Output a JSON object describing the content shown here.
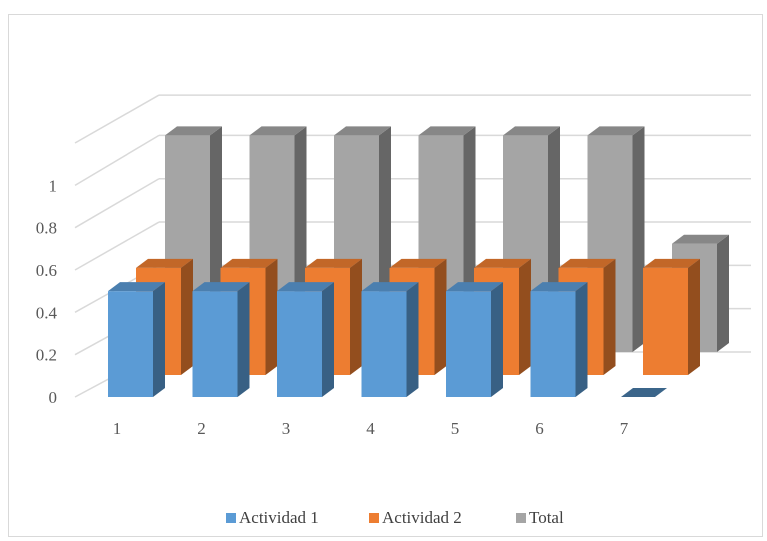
{
  "chart_data": {
    "type": "bar",
    "variant": "3d-column",
    "categories": [
      "1",
      "2",
      "3",
      "4",
      "5",
      "6",
      "7"
    ],
    "series": [
      {
        "name": "Actividad 1",
        "color": "#5b9bd5",
        "values": [
          0.5,
          0.5,
          0.5,
          0.5,
          0.5,
          0.5,
          0
        ]
      },
      {
        "name": "Actividad 2",
        "color": "#ed7d31",
        "values": [
          0.5,
          0.5,
          0.5,
          0.5,
          0.5,
          0.5,
          0.5
        ]
      },
      {
        "name": "Total",
        "color": "#a5a5a5",
        "values": [
          1,
          1,
          1,
          1,
          1,
          1,
          0.5
        ]
      }
    ],
    "yticks": [
      "0",
      "0.2",
      "0.4",
      "0.6",
      "0.8",
      "1"
    ],
    "ylim": [
      0,
      1.2
    ],
    "grid": true,
    "legend": "bottom"
  }
}
